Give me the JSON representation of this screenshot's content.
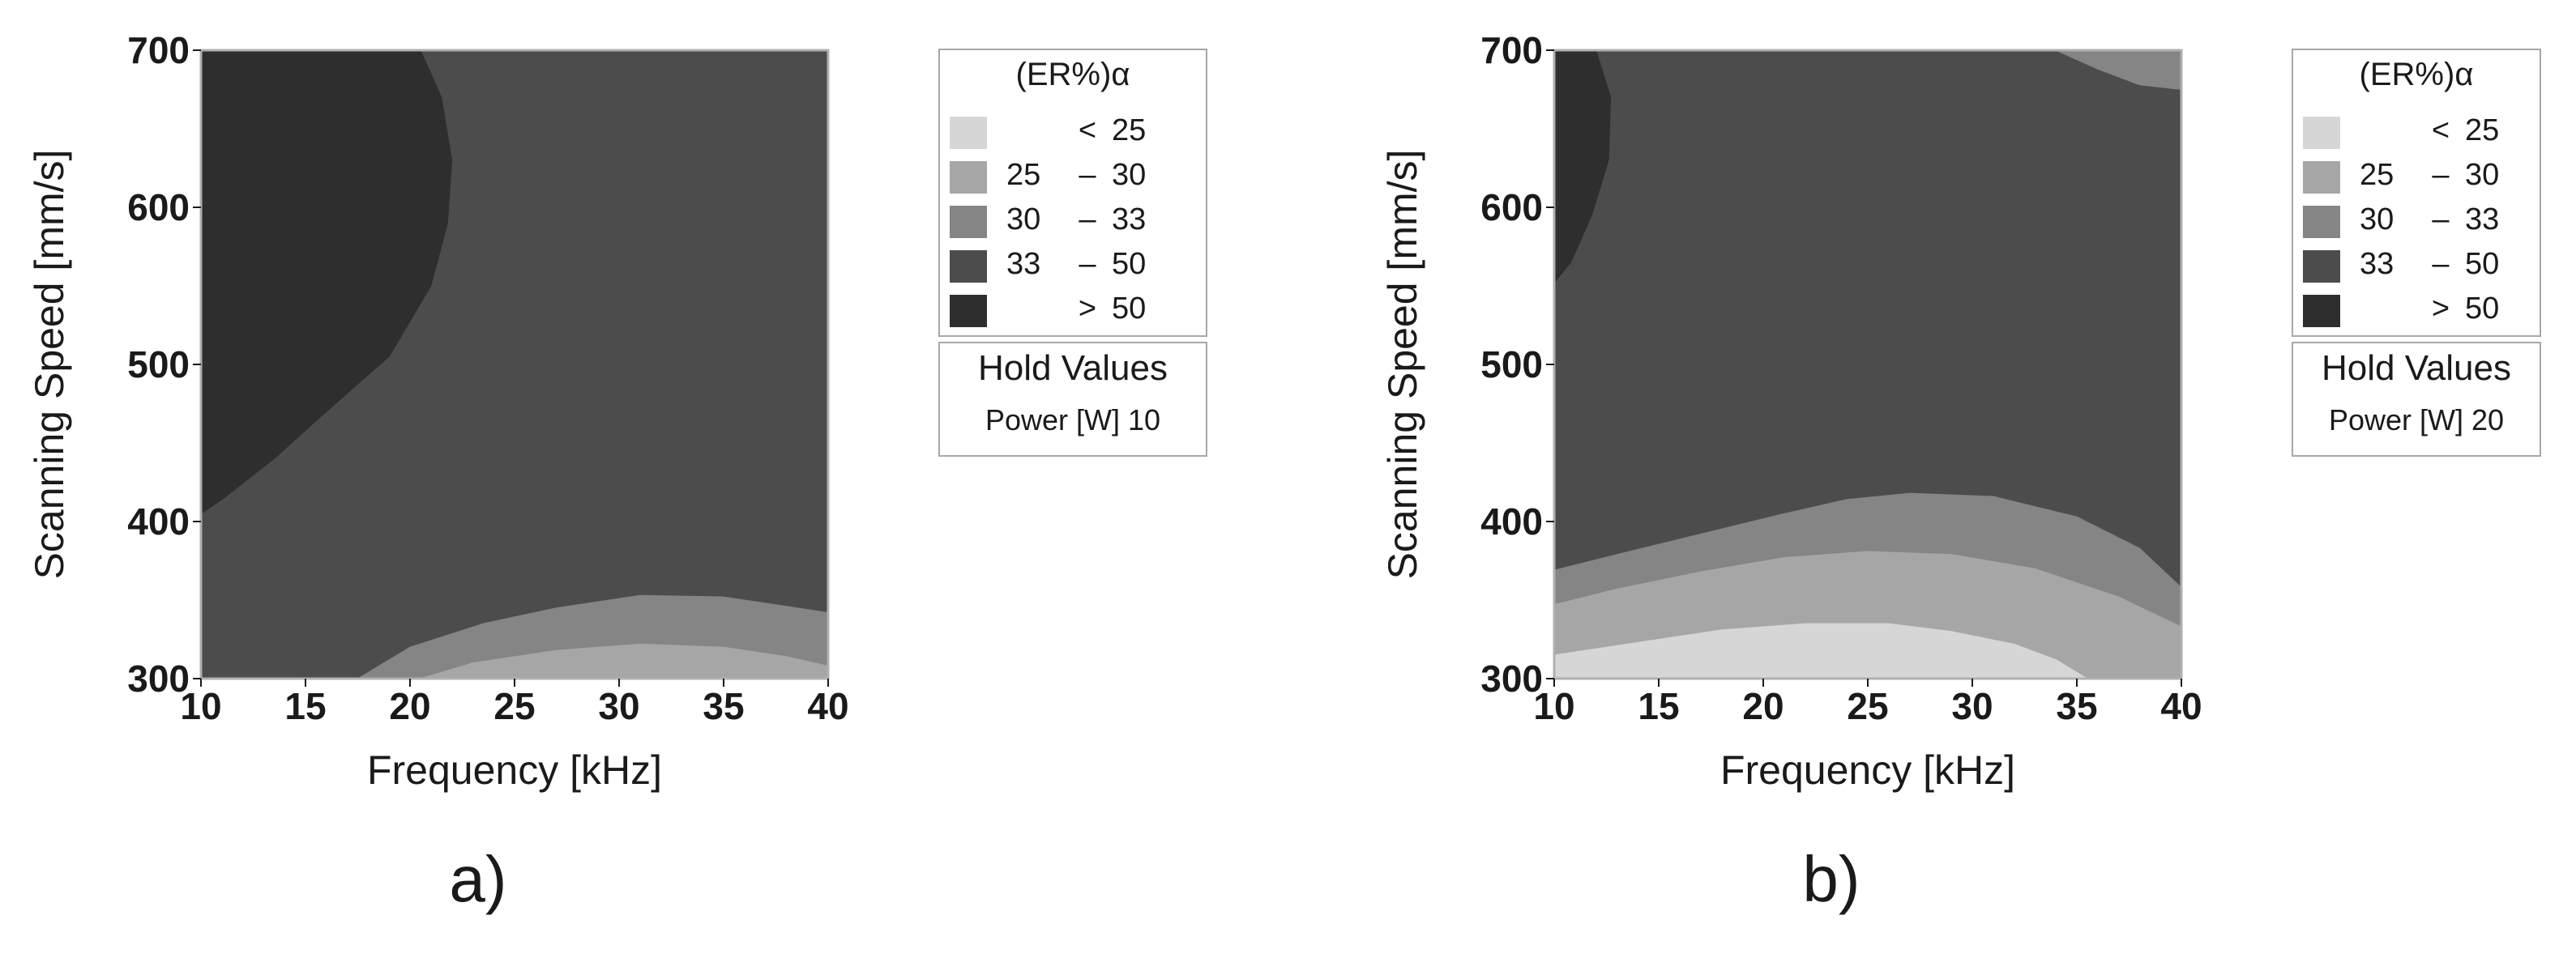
{
  "chart_data": [
    {
      "type": "contour",
      "panel_label": "a)",
      "xlabel": "Frequency [kHz]",
      "ylabel": "Scanning Speed [mm/s]",
      "xlim": [
        10,
        40
      ],
      "ylim": [
        300,
        700
      ],
      "xticks": [
        10,
        15,
        20,
        25,
        30,
        35,
        40
      ],
      "yticks": [
        300,
        400,
        500,
        600,
        700
      ],
      "legend": {
        "title": "(ER%)α",
        "entries": [
          {
            "lo": "",
            "dash": "<",
            "hi": "25",
            "color": "#d6d6d6"
          },
          {
            "lo": "25",
            "dash": "–",
            "hi": "30",
            "color": "#a6a6a6"
          },
          {
            "lo": "30",
            "dash": "–",
            "hi": "33",
            "color": "#858585"
          },
          {
            "lo": "33",
            "dash": "–",
            "hi": "50",
            "color": "#4c4c4c"
          },
          {
            "lo": "",
            "dash": ">",
            "hi": "50",
            "color": "#2e2e2e"
          }
        ]
      },
      "hold_values": {
        "title": "Hold Values",
        "label": "Power [W]  10"
      },
      "regions": [
        {
          "color": "#4c4c4c",
          "points": [
            [
              10,
              300
            ],
            [
              40,
              300
            ],
            [
              40,
              700
            ],
            [
              10,
              700
            ]
          ]
        },
        {
          "color": "#2e2e2e",
          "points": [
            [
              10,
              700
            ],
            [
              20.5,
              700
            ],
            [
              21.5,
              670
            ],
            [
              22,
              630
            ],
            [
              21.8,
              590
            ],
            [
              21,
              550
            ],
            [
              19,
              505
            ],
            [
              16,
              470
            ],
            [
              13.5,
              440
            ],
            [
              11,
              414
            ],
            [
              10,
              405
            ]
          ]
        },
        {
          "color": "#858585",
          "points": [
            [
              17.5,
              300
            ],
            [
              20,
              320
            ],
            [
              23.5,
              335
            ],
            [
              27,
              345
            ],
            [
              31,
              353
            ],
            [
              35,
              352
            ],
            [
              38,
              346
            ],
            [
              40,
              342
            ],
            [
              40,
              300
            ]
          ]
        },
        {
          "color": "#a6a6a6",
          "points": [
            [
              20.5,
              300
            ],
            [
              23,
              310
            ],
            [
              27,
              318
            ],
            [
              31,
              322
            ],
            [
              35,
              320
            ],
            [
              38,
              314
            ],
            [
              40,
              308
            ],
            [
              40,
              300
            ]
          ]
        }
      ]
    },
    {
      "type": "contour",
      "panel_label": "b)",
      "xlabel": "Frequency [kHz]",
      "ylabel": "Scanning Speed [mm/s]",
      "xlim": [
        10,
        40
      ],
      "ylim": [
        300,
        700
      ],
      "xticks": [
        10,
        15,
        20,
        25,
        30,
        35,
        40
      ],
      "yticks": [
        300,
        400,
        500,
        600,
        700
      ],
      "legend": {
        "title": "(ER%)α",
        "entries": [
          {
            "lo": "",
            "dash": "<",
            "hi": "25",
            "color": "#d6d6d6"
          },
          {
            "lo": "25",
            "dash": "–",
            "hi": "30",
            "color": "#a6a6a6"
          },
          {
            "lo": "30",
            "dash": "–",
            "hi": "33",
            "color": "#858585"
          },
          {
            "lo": "33",
            "dash": "–",
            "hi": "50",
            "color": "#4c4c4c"
          },
          {
            "lo": "",
            "dash": ">",
            "hi": "50",
            "color": "#2e2e2e"
          }
        ]
      },
      "hold_values": {
        "title": "Hold Values",
        "label": "Power [W]  20"
      },
      "regions": [
        {
          "color": "#4c4c4c",
          "points": [
            [
              10,
              300
            ],
            [
              40,
              300
            ],
            [
              40,
              700
            ],
            [
              10,
              700
            ]
          ]
        },
        {
          "color": "#2e2e2e",
          "points": [
            [
              10,
              700
            ],
            [
              12,
              700
            ],
            [
              12.7,
              670
            ],
            [
              12.6,
              630
            ],
            [
              11.8,
              595
            ],
            [
              10.8,
              565
            ],
            [
              10,
              552
            ]
          ]
        },
        {
          "color": "#858585",
          "points": [
            [
              34,
              700
            ],
            [
              40,
              700
            ],
            [
              40,
              675
            ],
            [
              38,
              678
            ],
            [
              36,
              688
            ]
          ]
        },
        {
          "color": "#858585",
          "points": [
            [
              10,
              300
            ],
            [
              10,
              369
            ],
            [
              13,
              379
            ],
            [
              17,
              392
            ],
            [
              21,
              405
            ],
            [
              24,
              414
            ],
            [
              27,
              418
            ],
            [
              31,
              416
            ],
            [
              35,
              403
            ],
            [
              38,
              383
            ],
            [
              40,
              358
            ],
            [
              40,
              300
            ]
          ]
        },
        {
          "color": "#a6a6a6",
          "points": [
            [
              10,
              300
            ],
            [
              10,
              347
            ],
            [
              13,
              357
            ],
            [
              17,
              368
            ],
            [
              21,
              377
            ],
            [
              25,
              381
            ],
            [
              29,
              379
            ],
            [
              33,
              370
            ],
            [
              37,
              352
            ],
            [
              40,
              333
            ],
            [
              40,
              300
            ]
          ]
        },
        {
          "color": "#d6d6d6",
          "points": [
            [
              10,
              300
            ],
            [
              10,
              315
            ],
            [
              14,
              323
            ],
            [
              18,
              331
            ],
            [
              22,
              335
            ],
            [
              26,
              335
            ],
            [
              29,
              330
            ],
            [
              32,
              322
            ],
            [
              34,
              312
            ],
            [
              35.5,
              300
            ]
          ]
        }
      ]
    }
  ]
}
